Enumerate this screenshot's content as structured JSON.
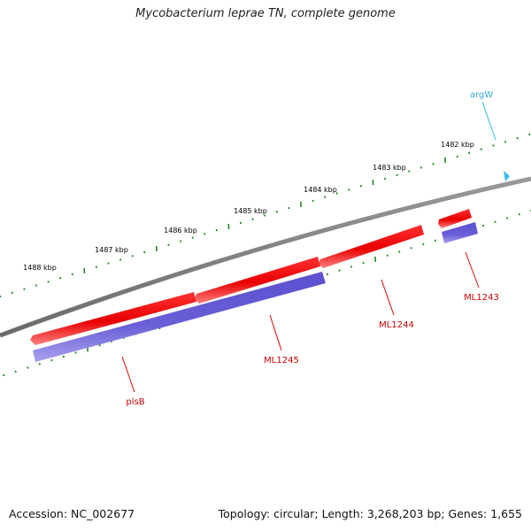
{
  "title": "Mycobacterium leprae TN, complete genome",
  "footer": {
    "accession": "Accession: NC_002677",
    "summary": "Topology: circular; Length: 3,268,203 bp; Genes: 1,655"
  },
  "scale_labels": [
    "1482 kbp",
    "1483 kbp",
    "1484 kbp",
    "1485 kbp",
    "1486 kbp",
    "1487 kbp",
    "1488 kbp"
  ],
  "genes": [
    {
      "name": "argW",
      "type": "tRNA",
      "color": "#33bbee"
    },
    {
      "name": "ML1243",
      "type": "CDS",
      "color": "#ee0000"
    },
    {
      "name": "ML1244",
      "type": "CDS",
      "color": "#ee0000"
    },
    {
      "name": "ML1245",
      "type": "CDS",
      "color": "#ee0000"
    },
    {
      "name": "plsB",
      "type": "CDS",
      "color": "#ee0000"
    }
  ],
  "colors": {
    "backbone": "#808080",
    "cds": "#ee0000",
    "translation": "#6655cc",
    "trna": "#33bbee",
    "ticks": "#228822",
    "label_cds": "#cc0000",
    "label_trna": "#33aadd"
  }
}
